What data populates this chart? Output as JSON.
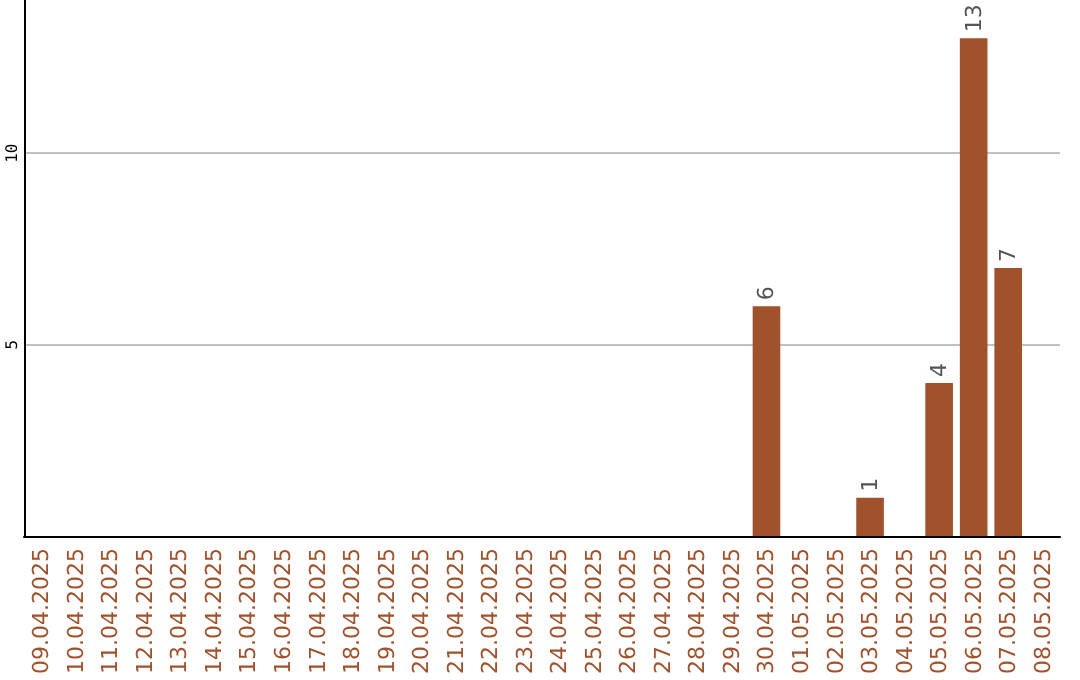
{
  "chart_data": {
    "type": "bar",
    "categories": [
      "09.04.2025",
      "10.04.2025",
      "11.04.2025",
      "12.04.2025",
      "13.04.2025",
      "14.04.2025",
      "15.04.2025",
      "16.04.2025",
      "17.04.2025",
      "18.04.2025",
      "19.04.2025",
      "20.04.2025",
      "21.04.2025",
      "22.04.2025",
      "23.04.2025",
      "24.04.2025",
      "25.04.2025",
      "26.04.2025",
      "27.04.2025",
      "28.04.2025",
      "29.04.2025",
      "30.04.2025",
      "01.05.2025",
      "02.05.2025",
      "03.05.2025",
      "04.05.2025",
      "05.05.2025",
      "06.05.2025",
      "07.05.2025",
      "08.05.2025"
    ],
    "values": [
      null,
      null,
      null,
      null,
      null,
      null,
      null,
      null,
      null,
      null,
      null,
      null,
      null,
      null,
      null,
      null,
      null,
      null,
      null,
      null,
      null,
      6,
      null,
      null,
      1,
      null,
      4,
      13,
      7,
      null
    ],
    "color": "#a0522d",
    "ylim": [
      0,
      14
    ],
    "yticks": [
      5,
      10
    ],
    "grid": "y",
    "data_labels": true
  }
}
